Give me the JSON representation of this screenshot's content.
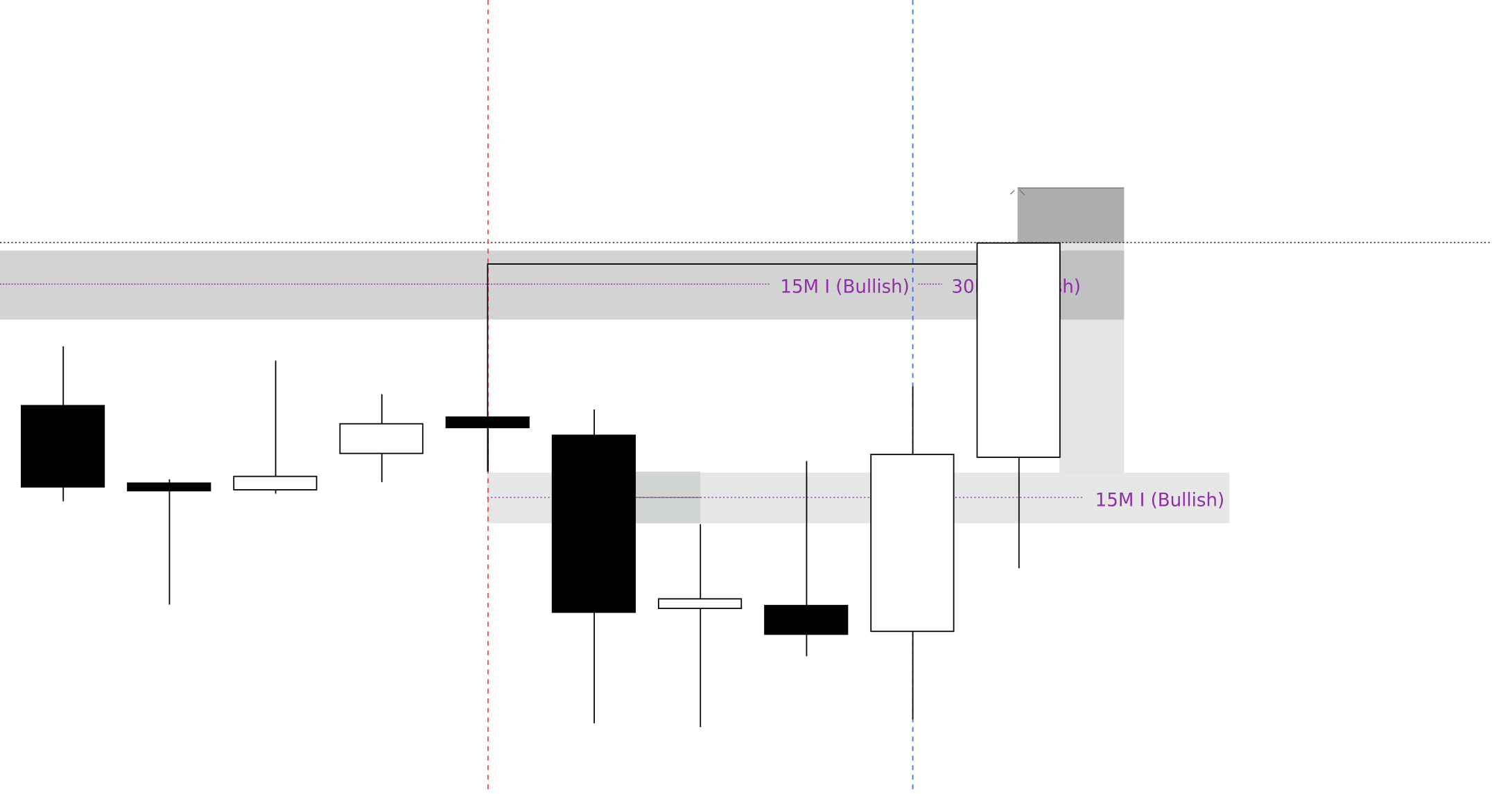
{
  "chart_data": {
    "type": "candlestick",
    "title": "",
    "xlabel": "",
    "ylabel": "",
    "grid": false,
    "candles": [
      {
        "open": 40.6,
        "high": 46.8,
        "low": 30.6,
        "close": 32.1,
        "direction": "bearish"
      },
      {
        "open": 32.5,
        "high": 32.9,
        "low": 19.8,
        "close": 31.7,
        "direction": "bearish"
      },
      {
        "open": 31.8,
        "high": 45.3,
        "low": 31.4,
        "close": 33.2,
        "direction": "bullish"
      },
      {
        "open": 35.6,
        "high": 41.8,
        "low": 32.6,
        "close": 38.7,
        "direction": "bullish"
      },
      {
        "open": 39.4,
        "high": 39.4,
        "low": 33.7,
        "close": 38.3,
        "direction": "bearish"
      },
      {
        "open": 37.5,
        "high": 40.2,
        "low": 7.4,
        "close": 19.0,
        "direction": "bearish"
      },
      {
        "open": 19.4,
        "high": 28.2,
        "low": 7.0,
        "close": 20.4,
        "direction": "bullish"
      },
      {
        "open": 19.7,
        "high": 34.8,
        "low": 14.4,
        "close": 16.7,
        "direction": "bearish"
      },
      {
        "open": 17.0,
        "high": 42.6,
        "low": 7.8,
        "close": 35.5,
        "direction": "bullish"
      },
      {
        "open": 35.2,
        "high": 57.6,
        "low": 23.6,
        "close": 57.6,
        "direction": "bullish"
      }
    ],
    "zones": [
      {
        "label": "30M I (Bullish)",
        "top": 56.8,
        "bottom": 49.6,
        "level": 53.3,
        "color": "#d3d3d3"
      },
      {
        "label": "15M I (Bullish)",
        "top": 33.6,
        "bottom": 28.3,
        "level": 31.0,
        "color": "#e6e6e6"
      }
    ],
    "overlapping_label": "15M I (Bullish)",
    "horizontal_dotted_level": 57.7,
    "bracket_level": 55.4,
    "vertical_markers": [
      {
        "candle_index": 4,
        "color": "#e8474b",
        "style": "dashed"
      },
      {
        "candle_index": 8,
        "color": "#3b6fe8",
        "style": "dashed"
      }
    ],
    "colors": {
      "bearish": "#000000",
      "bullish": "#ffffff",
      "label": "#8e2fa8",
      "upper_box": "#aeaeae",
      "side_zone": "#e3e3e5",
      "gap_box": "#d0d5d2"
    }
  }
}
